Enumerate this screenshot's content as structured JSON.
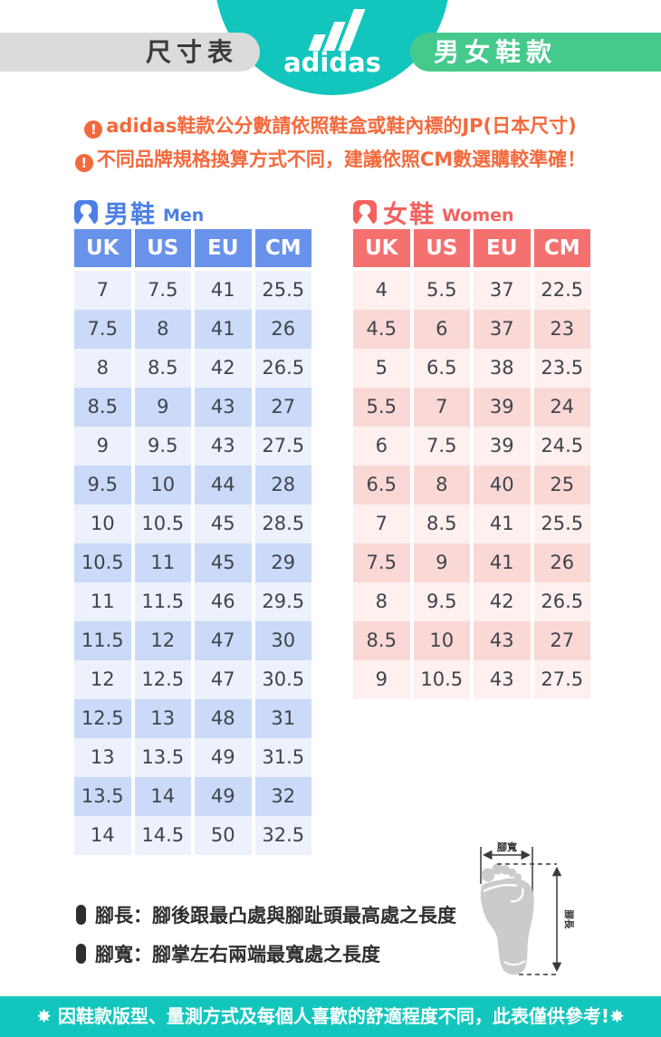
{
  "header": {
    "size_label": "尺寸表",
    "brand_word": "adidas",
    "category_label": "男女鞋款"
  },
  "icons": {
    "exclamation": "!"
  },
  "notices": [
    "adidas鞋款公分數請依照鞋盒或鞋內標的JP(日本尺寸)",
    "不同品牌規格換算方式不同，建議依照CM數選購較準確！"
  ],
  "men": {
    "title_zh": "男鞋",
    "title_en": "Men",
    "columns": [
      "UK",
      "US",
      "EU",
      "CM"
    ],
    "rows": [
      [
        "7",
        "7.5",
        "41",
        "25.5"
      ],
      [
        "7.5",
        "8",
        "41",
        "26"
      ],
      [
        "8",
        "8.5",
        "42",
        "26.5"
      ],
      [
        "8.5",
        "9",
        "43",
        "27"
      ],
      [
        "9",
        "9.5",
        "43",
        "27.5"
      ],
      [
        "9.5",
        "10",
        "44",
        "28"
      ],
      [
        "10",
        "10.5",
        "45",
        "28.5"
      ],
      [
        "10.5",
        "11",
        "45",
        "29"
      ],
      [
        "11",
        "11.5",
        "46",
        "29.5"
      ],
      [
        "11.5",
        "12",
        "47",
        "30"
      ],
      [
        "12",
        "12.5",
        "47",
        "30.5"
      ],
      [
        "12.5",
        "13",
        "48",
        "31"
      ],
      [
        "13",
        "13.5",
        "49",
        "31.5"
      ],
      [
        "13.5",
        "14",
        "49",
        "32"
      ],
      [
        "14",
        "14.5",
        "50",
        "32.5"
      ]
    ]
  },
  "women": {
    "title_zh": "女鞋",
    "title_en": "Women",
    "columns": [
      "UK",
      "US",
      "EU",
      "CM"
    ],
    "rows": [
      [
        "4",
        "5.5",
        "37",
        "22.5"
      ],
      [
        "4.5",
        "6",
        "37",
        "23"
      ],
      [
        "5",
        "6.5",
        "38",
        "23.5"
      ],
      [
        "5.5",
        "7",
        "39",
        "24"
      ],
      [
        "6",
        "7.5",
        "39",
        "24.5"
      ],
      [
        "6.5",
        "8",
        "40",
        "25"
      ],
      [
        "7",
        "8.5",
        "41",
        "25.5"
      ],
      [
        "7.5",
        "9",
        "41",
        "26"
      ],
      [
        "8",
        "9.5",
        "42",
        "26.5"
      ],
      [
        "8.5",
        "10",
        "43",
        "27"
      ],
      [
        "9",
        "10.5",
        "43",
        "27.5"
      ]
    ]
  },
  "foot_diagram": {
    "width_label": "腳寬",
    "length_label": "腳長"
  },
  "footnotes": [
    "腳長：腳後跟最凸處與腳趾頭最高處之長度",
    "腳寬：腳掌左右兩端最寬處之長度"
  ],
  "footer": {
    "text": "✸ 因鞋款版型、量測方式及每個人喜歡的舒適程度不同，此表僅供參考!✸"
  },
  "colors": {
    "teal": "#13C6BD",
    "green_pill": "#45C98D",
    "gray_pill": "#DBDBDB",
    "warning_orange": "#F4693C",
    "men_blue": "#4C80E6",
    "men_header": "#6992EB",
    "men_row_light": "#ECF1FB",
    "men_row_dark": "#CADAF8",
    "women_coral": "#F2625F",
    "women_header": "#F4716F",
    "women_row_light": "#FDF0EE",
    "women_row_dark": "#FAD8D6"
  }
}
